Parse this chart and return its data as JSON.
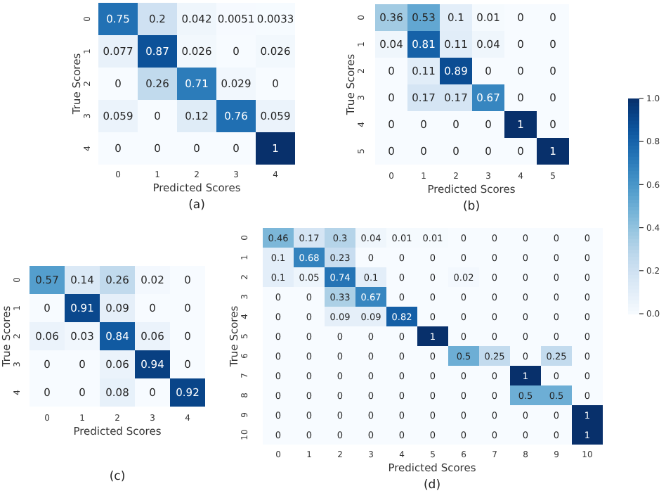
{
  "chart_data": [
    {
      "type": "heatmap",
      "title": "(a)",
      "xlabel": "Predicted Scores",
      "ylabel": "True Scores",
      "categories": [
        "0",
        "1",
        "2",
        "3",
        "4"
      ],
      "y_categories": [
        "0",
        "1",
        "2",
        "3",
        "4"
      ],
      "data_labels": true,
      "cells": [
        [
          0.75,
          0.2,
          0.042,
          0.0051,
          0.0033
        ],
        [
          0.077,
          0.87,
          0.026,
          0,
          0.026
        ],
        [
          0,
          0.26,
          0.71,
          0.029,
          0
        ],
        [
          0.059,
          0,
          0.12,
          0.76,
          0.059
        ],
        [
          0,
          0,
          0,
          0,
          1
        ]
      ]
    },
    {
      "type": "heatmap",
      "title": "(b)",
      "xlabel": "Predicted Scores",
      "ylabel": "True Scores",
      "categories": [
        "0",
        "1",
        "2",
        "3",
        "4",
        "5"
      ],
      "y_categories": [
        "0",
        "1",
        "2",
        "3",
        "4",
        "5"
      ],
      "data_labels": true,
      "clim": [
        0,
        1
      ],
      "cticks": [
        {
          "value": 0,
          "label": "0.0"
        },
        {
          "value": 0.2,
          "label": "0.2"
        },
        {
          "value": 0.4,
          "label": "0.4"
        },
        {
          "value": 0.6,
          "label": "0.6"
        },
        {
          "value": 0.8,
          "label": "0.8"
        },
        {
          "value": 1,
          "label": "1.0"
        }
      ],
      "cells": [
        [
          0.36,
          0.53,
          0.1,
          0.01,
          0,
          0
        ],
        [
          0.04,
          0.81,
          0.11,
          0.04,
          0,
          0
        ],
        [
          0,
          0.11,
          0.89,
          0,
          0,
          0
        ],
        [
          0,
          0.17,
          0.17,
          0.67,
          0,
          0
        ],
        [
          0,
          0,
          0,
          0,
          1,
          0
        ],
        [
          0,
          0,
          0,
          0,
          0,
          1
        ]
      ]
    },
    {
      "type": "heatmap",
      "title": "(c)",
      "xlabel": "Predicted Scores",
      "ylabel": "True Scores",
      "categories": [
        "0",
        "1",
        "2",
        "3",
        "4"
      ],
      "y_categories": [
        "0",
        "1",
        "2",
        "3",
        "4"
      ],
      "data_labels": true,
      "cells": [
        [
          0.57,
          0.14,
          0.26,
          0.02,
          0
        ],
        [
          0,
          0.91,
          0.09,
          0,
          0
        ],
        [
          0.06,
          0.03,
          0.84,
          0.06,
          0
        ],
        [
          0,
          0,
          0.06,
          0.94,
          0
        ],
        [
          0,
          0,
          0.08,
          0,
          0.92
        ]
      ]
    },
    {
      "type": "heatmap",
      "title": "(d)",
      "xlabel": "Predicted Scores",
      "ylabel": "True Scores",
      "categories": [
        "0",
        "1",
        "2",
        "3",
        "4",
        "5",
        "6",
        "7",
        "8",
        "9",
        "10"
      ],
      "y_categories": [
        "0",
        "1",
        "2",
        "3",
        "4",
        "5",
        "6",
        "7",
        "8",
        "9",
        "10"
      ],
      "data_labels": true,
      "cells": [
        [
          0.46,
          0.17,
          0.3,
          0.04,
          0.01,
          0.01,
          0,
          0,
          0,
          0,
          0
        ],
        [
          0.1,
          0.68,
          0.23,
          0,
          0,
          0,
          0,
          0,
          0,
          0,
          0
        ],
        [
          0.1,
          0.05,
          0.74,
          0.1,
          0,
          0,
          0.02,
          0,
          0,
          0,
          0
        ],
        [
          0,
          0,
          0.33,
          0.67,
          0,
          0,
          0,
          0,
          0,
          0,
          0
        ],
        [
          0,
          0,
          0.09,
          0.09,
          0.82,
          0,
          0,
          0,
          0,
          0,
          0
        ],
        [
          0,
          0,
          0,
          0,
          0,
          1,
          0,
          0,
          0,
          0,
          0
        ],
        [
          0,
          0,
          0,
          0,
          0,
          0,
          0.5,
          0.25,
          0,
          0.25,
          0
        ],
        [
          0,
          0,
          0,
          0,
          0,
          0,
          0,
          0,
          1,
          0,
          0
        ],
        [
          0,
          0,
          0,
          0,
          0,
          0,
          0,
          0,
          0.5,
          0.5,
          0
        ],
        [
          0,
          0,
          0,
          0,
          0,
          0,
          0,
          0,
          0,
          0,
          1
        ],
        [
          0,
          0,
          0,
          0,
          0,
          0,
          0,
          0,
          0,
          0,
          1
        ]
      ]
    }
  ]
}
